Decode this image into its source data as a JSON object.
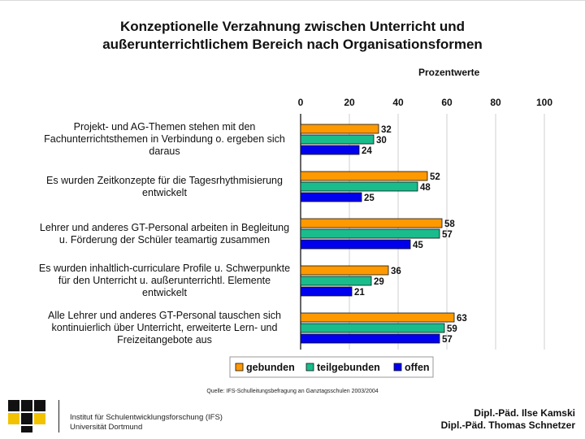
{
  "slide": {
    "title_line1": "Konzeptionelle Verzahnung zwischen Unterricht und",
    "title_line2": "außerunterrichtlichem Bereich nach Organisationsformen",
    "source": "Quelle: IFS-Schulleitungsbefragung an Ganztagsschulen 2003/2004",
    "institute_line1": "Institut für Schulentwicklungsforschung (IFS)",
    "institute_line2": "Universität Dortmund",
    "author1": "Dipl.-Päd. Ilse Kamski",
    "author2": "Dipl.-Päd. Thomas Schnetzer"
  },
  "chart_data": {
    "type": "bar",
    "orientation": "horizontal",
    "units_label": "Prozentwerte",
    "xlim": [
      0,
      100
    ],
    "ticks": [
      0,
      20,
      40,
      60,
      80,
      100
    ],
    "grid": true,
    "legend_position": "bottom",
    "categories": [
      [
        "Projekt- und AG-Themen stehen mit den",
        "Fachunterrichtsthemen in Verbindung o. ergeben sich",
        "daraus"
      ],
      [
        "Es wurden Zeitkonzepte für die Tagesrhythmisierung",
        "entwickelt"
      ],
      [
        "Lehrer und anderes GT-Personal arbeiten in Begleitung",
        "u. Förderung der Schüler teamartig zusammen"
      ],
      [
        "Es wurden inhaltlich-curriculare Profile u. Schwerpunkte",
        "für den Unterricht u. außerunterrichtl. Elemente",
        "entwickelt"
      ],
      [
        "Alle Lehrer und anderes GT-Personal tauschen sich",
        "kontinuierlich über Unterricht, erweiterte Lern- und",
        "Freizeitangebote aus"
      ]
    ],
    "series": [
      {
        "name": "gebunden",
        "color": "#ff9900",
        "values": [
          32,
          52,
          58,
          36,
          63
        ]
      },
      {
        "name": "teilgebunden",
        "color": "#1abc8c",
        "values": [
          30,
          48,
          57,
          29,
          59
        ]
      },
      {
        "name": "offen",
        "color": "#0000ee",
        "values": [
          24,
          25,
          45,
          21,
          57
        ]
      }
    ]
  }
}
